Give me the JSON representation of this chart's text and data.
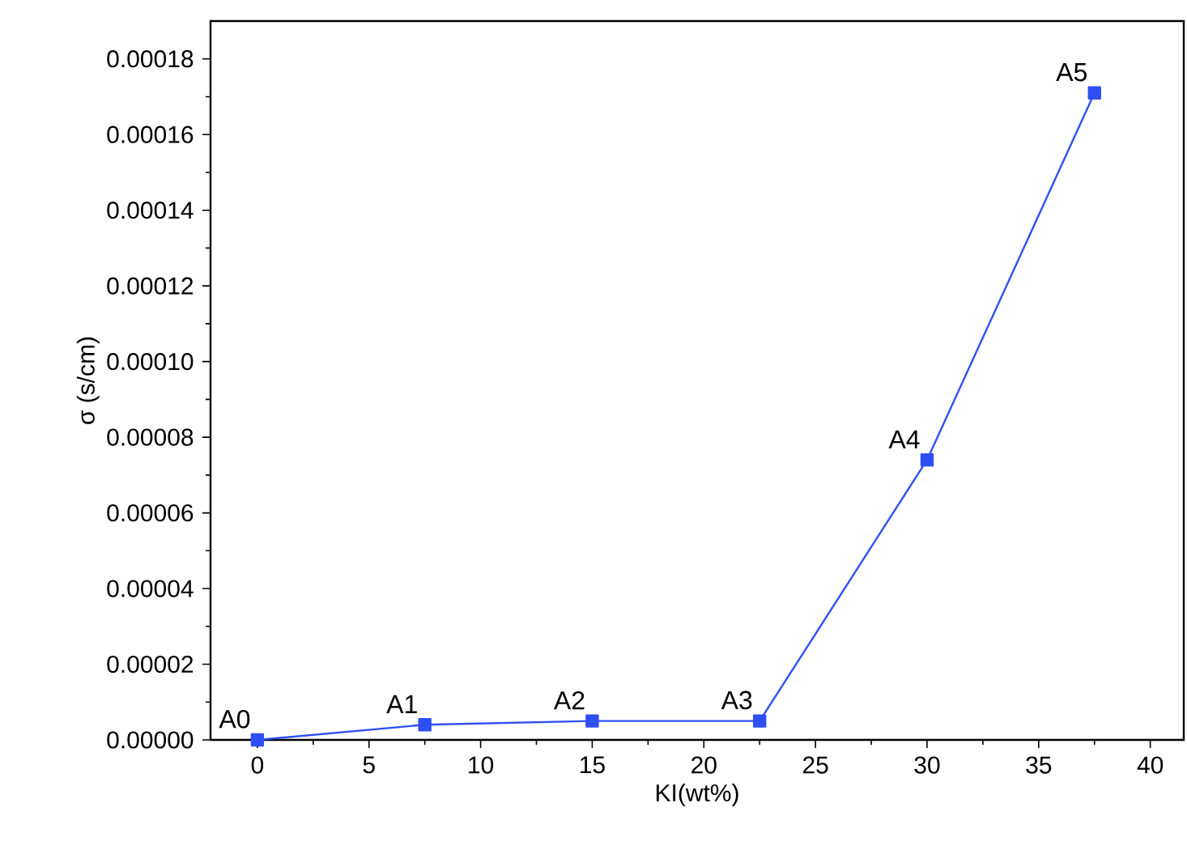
{
  "chart_data": {
    "type": "line",
    "xlabel": "KI(wt%)",
    "ylabel": "σ (s/cm)",
    "x": [
      0,
      7.5,
      15,
      22.5,
      30,
      37.5
    ],
    "series": [
      {
        "color": "#2f4ff5",
        "values": [
          0,
          4e-06,
          5e-06,
          5e-06,
          7.4e-05,
          0.000171
        ]
      }
    ],
    "marker": "square",
    "line_style": "solid",
    "grid": false,
    "xlim": [
      -2.1,
      41.5
    ],
    "ylim": [
      0,
      0.00019
    ],
    "xticks": [
      0,
      5,
      10,
      15,
      20,
      25,
      30,
      35,
      40
    ],
    "yticks": [
      {
        "value": 0,
        "label": "0.00000"
      },
      {
        "value": 2e-05,
        "label": "0.00002"
      },
      {
        "value": 4e-05,
        "label": "0.00004"
      },
      {
        "value": 6e-05,
        "label": "0.00006"
      },
      {
        "value": 8e-05,
        "label": "0.00008"
      },
      {
        "value": 0.0001,
        "label": "0.00010"
      },
      {
        "value": 0.00012,
        "label": "0.00012"
      },
      {
        "value": 0.00014,
        "label": "0.00014"
      },
      {
        "value": 0.00016,
        "label": "0.00016"
      },
      {
        "value": 0.00018,
        "label": "0.00018"
      }
    ],
    "annotations": [
      {
        "text": "A0",
        "x": 0,
        "y": 0
      },
      {
        "text": "A1",
        "x": 7.5,
        "y": 4e-06
      },
      {
        "text": "A2",
        "x": 15,
        "y": 5e-06
      },
      {
        "text": "A3",
        "x": 22.5,
        "y": 5e-06
      },
      {
        "text": "A4",
        "x": 30,
        "y": 7.4e-05
      },
      {
        "text": "A5",
        "x": 37.5,
        "y": 0.000171
      }
    ]
  }
}
